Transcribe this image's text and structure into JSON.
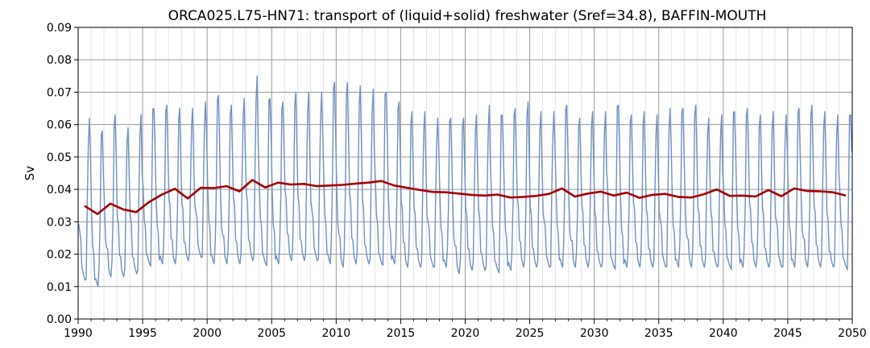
{
  "chart_data": {
    "type": "line",
    "title": "ORCA025.L75-HN71: transport of (liquid+solid) freshwater (Sref=34.8), BAFFIN-MOUTH",
    "xlabel": "",
    "ylabel": "Sv",
    "xlim": [
      1990,
      2050
    ],
    "ylim": [
      0.0,
      0.09
    ],
    "x_ticks": [
      "1990",
      "1995",
      "2000",
      "2005",
      "2010",
      "2015",
      "2020",
      "2025",
      "2030",
      "2035",
      "2040",
      "2045",
      "2050"
    ],
    "y_ticks": [
      "0.00",
      "0.01",
      "0.02",
      "0.03",
      "0.04",
      "0.05",
      "0.06",
      "0.07",
      "0.08",
      "0.09"
    ],
    "grid": true,
    "legend": false,
    "series": [
      {
        "id": "monthly",
        "color": "#7090c0",
        "note_visual": "monthly seasonal cycle",
        "x_start": 1990.04,
        "x_step": 0.0833333,
        "annual_peaks": [
          0.062,
          0.058,
          0.063,
          0.059,
          0.063,
          0.065,
          0.066,
          0.065,
          0.065,
          0.067,
          0.069,
          0.066,
          0.068,
          0.075,
          0.068,
          0.067,
          0.07,
          0.07,
          0.07,
          0.073,
          0.073,
          0.072,
          0.071,
          0.07,
          0.067,
          0.064,
          0.064,
          0.062,
          0.062,
          0.062,
          0.063,
          0.066,
          0.063,
          0.065,
          0.067,
          0.064,
          0.064,
          0.066,
          0.062,
          0.064,
          0.064,
          0.066,
          0.063,
          0.064,
          0.063,
          0.065,
          0.065,
          0.066,
          0.062,
          0.063,
          0.064,
          0.065,
          0.063,
          0.064,
          0.063,
          0.065,
          0.066,
          0.064,
          0.063,
          0.063
        ],
        "annual_troughs": [
          0.012,
          0.01,
          0.013,
          0.013,
          0.014,
          0.017,
          0.017,
          0.017,
          0.018,
          0.019,
          0.017,
          0.017,
          0.017,
          0.018,
          0.017,
          0.017,
          0.018,
          0.018,
          0.018,
          0.017,
          0.016,
          0.017,
          0.017,
          0.017,
          0.017,
          0.016,
          0.016,
          0.016,
          0.016,
          0.014,
          0.015,
          0.015,
          0.015,
          0.015,
          0.016,
          0.016,
          0.016,
          0.016,
          0.016,
          0.016,
          0.016,
          0.016,
          0.016,
          0.016,
          0.016,
          0.016,
          0.016,
          0.016,
          0.016,
          0.016,
          0.016,
          0.016,
          0.016,
          0.016,
          0.016,
          0.016,
          0.016,
          0.016,
          0.016,
          0.016
        ]
      },
      {
        "id": "annual-mean",
        "color": "#a50000",
        "note_visual": "annual mean",
        "x": [
          1990.5,
          1991.5,
          1992.5,
          1993.5,
          1994.5,
          1995.5,
          1996.5,
          1997.5,
          1998.5,
          1999.5,
          2000.5,
          2001.5,
          2002.5,
          2003.5,
          2004.5,
          2005.5,
          2006.5,
          2007.5,
          2008.5,
          2009.5,
          2010.5,
          2011.5,
          2012.5,
          2013.5,
          2014.5,
          2015.5,
          2016.5,
          2017.5,
          2018.5,
          2019.5,
          2020.5,
          2021.5,
          2022.5,
          2023.5,
          2024.5,
          2025.5,
          2026.5,
          2027.5,
          2028.5,
          2029.5,
          2030.5,
          2031.5,
          2032.5,
          2033.5,
          2034.5,
          2035.5,
          2036.5,
          2037.5,
          2038.5,
          2039.5,
          2040.5,
          2041.5,
          2042.5,
          2043.5,
          2044.5,
          2045.5,
          2046.5,
          2047.5,
          2048.5,
          2049.5
        ],
        "values": [
          0.0349,
          0.0324,
          0.0356,
          0.0338,
          0.033,
          0.0361,
          0.0384,
          0.0402,
          0.0372,
          0.0405,
          0.0404,
          0.041,
          0.0394,
          0.0429,
          0.0406,
          0.0421,
          0.0415,
          0.0417,
          0.041,
          0.0412,
          0.0414,
          0.0418,
          0.0421,
          0.0426,
          0.0412,
          0.0405,
          0.0398,
          0.0392,
          0.0391,
          0.0387,
          0.0383,
          0.0381,
          0.0384,
          0.0375,
          0.0377,
          0.038,
          0.0386,
          0.0403,
          0.0378,
          0.0387,
          0.0393,
          0.0381,
          0.039,
          0.0374,
          0.0383,
          0.0386,
          0.0377,
          0.0375,
          0.0385,
          0.04,
          0.038,
          0.0381,
          0.0378,
          0.0398,
          0.0379,
          0.0403,
          0.0395,
          0.0394,
          0.0391,
          0.0381
        ]
      }
    ]
  }
}
